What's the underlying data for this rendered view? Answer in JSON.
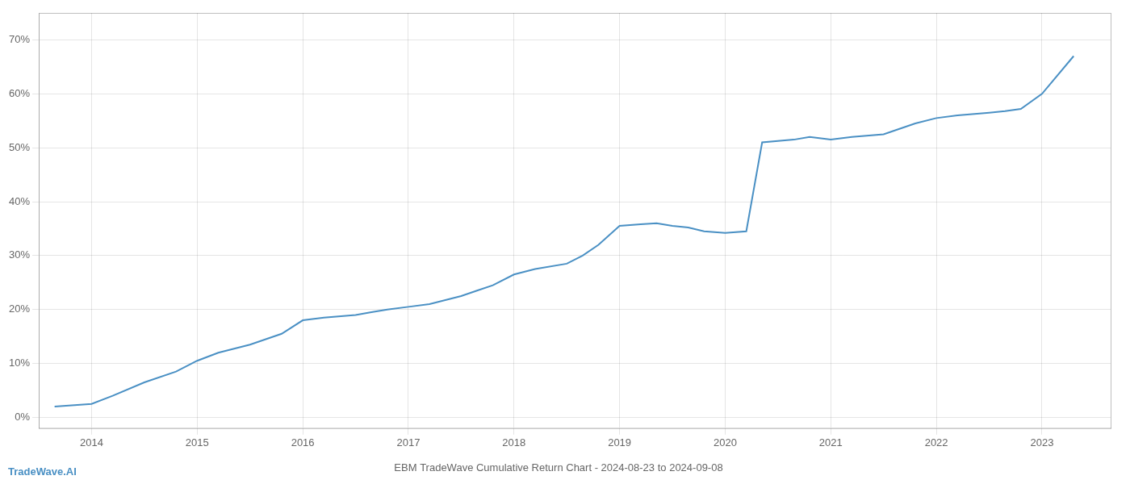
{
  "chart_data": {
    "type": "line",
    "title": "EBM TradeWave Cumulative Return Chart - 2024-08-23 to 2024-09-08",
    "annotations": [
      "TradeWave.AI"
    ],
    "x": [
      2013.65,
      2014.0,
      2014.2,
      2014.5,
      2014.8,
      2015.0,
      2015.2,
      2015.5,
      2015.8,
      2016.0,
      2016.2,
      2016.5,
      2016.65,
      2016.8,
      2017.0,
      2017.2,
      2017.5,
      2017.65,
      2017.8,
      2018.0,
      2018.2,
      2018.5,
      2018.65,
      2018.8,
      2019.0,
      2019.2,
      2019.35,
      2019.5,
      2019.65,
      2019.8,
      2020.0,
      2020.2,
      2020.35,
      2020.65,
      2020.8,
      2021.0,
      2021.2,
      2021.5,
      2021.65,
      2021.8,
      2022.0,
      2022.2,
      2022.5,
      2022.65,
      2022.8,
      2023.0,
      2023.3
    ],
    "values": [
      2.0,
      2.5,
      4.0,
      6.5,
      8.5,
      10.5,
      12.0,
      13.5,
      15.5,
      18.0,
      18.5,
      19.0,
      19.5,
      20.0,
      20.5,
      21.0,
      22.5,
      23.5,
      24.5,
      26.5,
      27.5,
      28.5,
      30.0,
      32.0,
      35.5,
      35.8,
      36.0,
      35.5,
      35.2,
      34.5,
      34.2,
      34.5,
      51.0,
      51.5,
      52.0,
      51.5,
      52.0,
      52.5,
      53.5,
      54.5,
      55.5,
      56.0,
      56.5,
      56.8,
      57.2,
      60.0,
      67.0
    ],
    "color": "#4a90c4",
    "xlim": [
      2013.5,
      2023.65
    ],
    "xticks": [
      2014,
      2015,
      2016,
      2017,
      2018,
      2019,
      2020,
      2021,
      2022,
      2023
    ],
    "ylim": [
      -2,
      75
    ],
    "yticks": [
      {
        "value": 0,
        "label": "0%"
      },
      {
        "value": 10,
        "label": "10%"
      },
      {
        "value": 20,
        "label": "20%"
      },
      {
        "value": 30,
        "label": "30%"
      },
      {
        "value": 40,
        "label": "40%"
      },
      {
        "value": 50,
        "label": "50%"
      },
      {
        "value": 60,
        "label": "60%"
      },
      {
        "value": 70,
        "label": "70%"
      }
    ],
    "grid": true
  }
}
